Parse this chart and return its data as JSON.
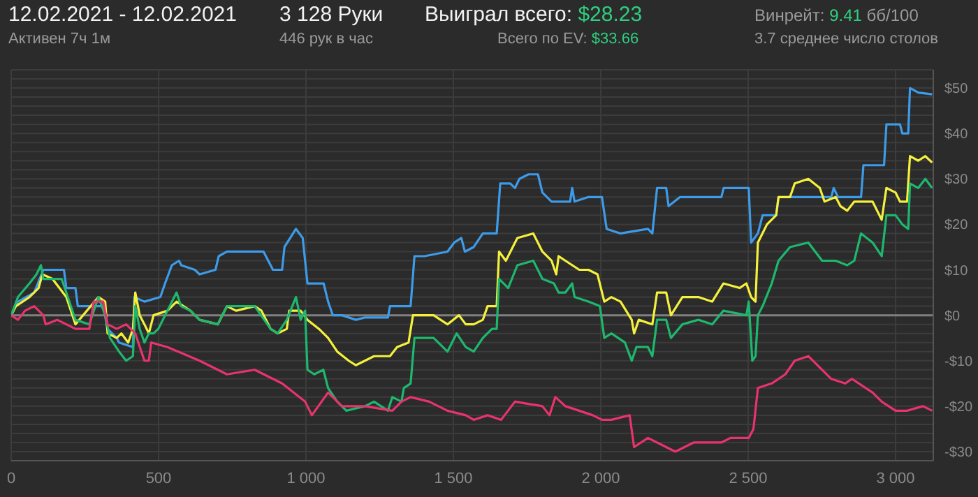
{
  "chart_data": {
    "type": "line",
    "title": "12.02.2021 - 12.02.2021",
    "annotations": [
      "Активен 7ч 1м",
      "3 128 Руки",
      "446 рук в час",
      "Выиграл всего:",
      "$28.23",
      "Всего по EV:",
      "$33.66",
      "Винрейт:",
      "9.41",
      "бб/100",
      "3.7 среднее число столов"
    ],
    "xlim": [
      0,
      3128
    ],
    "xticks": [
      0,
      500,
      {
        "value": 1000,
        "label": "1 000"
      },
      {
        "value": 1500,
        "label": "1 500"
      },
      {
        "value": 2000,
        "label": "2 000"
      },
      {
        "value": 2500,
        "label": "2 500"
      },
      {
        "value": 3000,
        "label": "3 000"
      }
    ],
    "ylim": [
      -32,
      54
    ],
    "yticks": [
      {
        "value": -30,
        "label": "-$30"
      },
      {
        "value": -28,
        "label": null
      },
      {
        "value": -26,
        "label": null
      },
      {
        "value": -24,
        "label": null
      },
      {
        "value": -22,
        "label": null
      },
      {
        "value": -20,
        "label": "-$20"
      },
      {
        "value": -18,
        "label": null
      },
      {
        "value": -16,
        "label": null
      },
      {
        "value": -14,
        "label": null
      },
      {
        "value": -12,
        "label": null
      },
      {
        "value": -10,
        "label": "-$10"
      },
      {
        "value": -8,
        "label": null
      },
      {
        "value": -6,
        "label": null
      },
      {
        "value": -4,
        "label": null
      },
      {
        "value": -2,
        "label": null
      },
      {
        "value": 0,
        "label": "$0"
      },
      {
        "value": 2,
        "label": null
      },
      {
        "value": 4,
        "label": null
      },
      {
        "value": 6,
        "label": null
      },
      {
        "value": 8,
        "label": null
      },
      {
        "value": 10,
        "label": "$10"
      },
      {
        "value": 12,
        "label": null
      },
      {
        "value": 14,
        "label": null
      },
      {
        "value": 16,
        "label": null
      },
      {
        "value": 18,
        "label": null
      },
      {
        "value": 20,
        "label": "$20"
      },
      {
        "value": 22,
        "label": null
      },
      {
        "value": 24,
        "label": null
      },
      {
        "value": 26,
        "label": null
      },
      {
        "value": 28,
        "label": null
      },
      {
        "value": 30,
        "label": "$30"
      },
      {
        "value": 32,
        "label": null
      },
      {
        "value": 34,
        "label": null
      },
      {
        "value": 36,
        "label": null
      },
      {
        "value": 38,
        "label": null
      },
      {
        "value": 40,
        "label": "$40"
      },
      {
        "value": 42,
        "label": null
      },
      {
        "value": 44,
        "label": null
      },
      {
        "value": 46,
        "label": null
      },
      {
        "value": 48,
        "label": null
      },
      {
        "value": 50,
        "label": "$50"
      },
      {
        "value": 52,
        "label": null
      }
    ],
    "grid": true,
    "marker": "none",
    "line_style": "solid",
    "ref_lines": [
      {
        "axis": "y",
        "value": 0,
        "color": "#808080"
      }
    ],
    "series": [
      {
        "color": "#3d9be9",
        "x": [
          0,
          23,
          78,
          109,
          179,
          187,
          218,
          226,
          312,
          327,
          358,
          366,
          413,
          418,
          452,
          506,
          522,
          545,
          569,
          577,
          623,
          639,
          693,
          704,
          732,
          856,
          872,
          888,
          919,
          927,
          966,
          989,
          1005,
          1060,
          1075,
          1091,
          1122,
          1169,
          1200,
          1278,
          1285,
          1355,
          1368,
          1402,
          1480,
          1503,
          1527,
          1539,
          1569,
          1600,
          1647,
          1659,
          1693,
          1709,
          1724,
          1755,
          1787,
          1802,
          1833,
          1896,
          1903,
          1911,
          1958,
          1973,
          2004,
          2020,
          2067,
          2160,
          2175,
          2191,
          2222,
          2230,
          2269,
          2409,
          2417,
          2502,
          2510,
          2533,
          2549,
          2595,
          2603,
          2751,
          2782,
          2790,
          2805,
          2883,
          2891,
          2961,
          2969,
          3015,
          3023,
          3043,
          3049,
          3077,
          3124
        ],
        "values": [
          0,
          3,
          5,
          10,
          10,
          6,
          6,
          2,
          2,
          -3,
          -5,
          -6,
          -7,
          4,
          3,
          4,
          7,
          11,
          12,
          11,
          10,
          9,
          10,
          13,
          14,
          14,
          12,
          10,
          10,
          15,
          19,
          17,
          7,
          7,
          3,
          0,
          0,
          -1,
          -0.5,
          -0.5,
          2,
          2,
          13,
          13,
          14,
          16,
          17,
          14,
          15,
          18,
          18,
          29,
          29,
          28,
          30,
          31,
          31,
          27,
          25,
          25,
          28,
          25,
          26,
          26,
          26,
          19,
          18,
          19,
          18,
          28,
          28,
          24,
          26,
          26,
          28,
          28,
          16,
          18,
          22,
          22,
          26,
          26,
          26,
          28,
          26,
          26,
          33,
          33,
          42,
          42,
          40,
          40,
          50,
          49,
          48.6
        ]
      },
      {
        "color": "#f5f03c",
        "x": [
          0,
          16,
          62,
          93,
          106,
          140,
          187,
          218,
          296,
          319,
          327,
          358,
          374,
          397,
          413,
          421,
          436,
          452,
          467,
          483,
          530,
          561,
          608,
          639,
          701,
          732,
          763,
          826,
          849,
          880,
          904,
          935,
          943,
          982,
          1005,
          1044,
          1075,
          1106,
          1145,
          1169,
          1231,
          1285,
          1309,
          1348,
          1363,
          1433,
          1480,
          1519,
          1542,
          1569,
          1600,
          1616,
          1647,
          1655,
          1678,
          1717,
          1771,
          1802,
          1833,
          1849,
          1857,
          1880,
          1927,
          1958,
          1989,
          2012,
          2036,
          2067,
          2105,
          2113,
          2129,
          2175,
          2191,
          2222,
          2238,
          2277,
          2331,
          2378,
          2416,
          2471,
          2494,
          2510,
          2525,
          2533,
          2564,
          2595,
          2603,
          2642,
          2658,
          2704,
          2743,
          2759,
          2797,
          2813,
          2836,
          2860,
          2922,
          2953,
          2969,
          3000,
          3015,
          3039,
          3049,
          3077,
          3101,
          3124
        ],
        "values": [
          0,
          2,
          4,
          6,
          9,
          8,
          4,
          -2,
          4,
          3,
          -4,
          -5,
          -4,
          -6,
          -3,
          5,
          0,
          -2,
          -4,
          0,
          1,
          3,
          1,
          -1,
          -2,
          2,
          1,
          2,
          1,
          -3,
          -4,
          -3,
          1,
          1,
          -1,
          -3,
          -5,
          -8,
          -10,
          -11,
          -9,
          -9,
          -7,
          -6,
          0,
          0,
          -2,
          0,
          -2,
          -2,
          -1,
          2,
          2,
          14,
          12,
          17,
          18,
          14,
          12,
          9,
          13,
          12,
          10,
          10,
          9,
          3,
          4,
          3,
          -1,
          -4,
          -1,
          -2,
          5,
          5,
          0,
          4,
          4,
          3,
          7,
          6,
          7,
          4,
          3,
          16,
          20,
          22,
          26,
          26,
          29,
          30,
          28,
          25,
          26,
          24,
          23,
          25,
          25,
          21,
          28,
          27,
          25,
          25,
          35,
          34,
          35,
          33.6
        ]
      },
      {
        "color": "#1db86e",
        "x": [
          0,
          23,
          62,
          86,
          101,
          109,
          140,
          171,
          187,
          218,
          265,
          296,
          319,
          335,
          366,
          390,
          413,
          421,
          436,
          452,
          467,
          483,
          499,
          530,
          561,
          576,
          608,
          639,
          701,
          732,
          826,
          880,
          904,
          935,
          966,
          982,
          997,
          1005,
          1028,
          1059,
          1075,
          1106,
          1137,
          1200,
          1231,
          1278,
          1293,
          1324,
          1332,
          1355,
          1368,
          1433,
          1480,
          1511,
          1542,
          1569,
          1600,
          1631,
          1647,
          1655,
          1686,
          1717,
          1771,
          1802,
          1841,
          1857,
          1880,
          1903,
          1911,
          1958,
          1997,
          2012,
          2036,
          2082,
          2105,
          2121,
          2160,
          2175,
          2191,
          2222,
          2238,
          2277,
          2331,
          2378,
          2416,
          2494,
          2502,
          2514,
          2525,
          2533,
          2549,
          2580,
          2603,
          2642,
          2704,
          2751,
          2797,
          2836,
          2860,
          2883,
          2922,
          2953,
          2969,
          3000,
          3023,
          3043,
          3049,
          3077,
          3101,
          3124
        ],
        "values": [
          0,
          4,
          7,
          9,
          11,
          8,
          8,
          8,
          5,
          -1,
          -2,
          4,
          0,
          -5,
          -8,
          -10,
          -9,
          2,
          -3,
          -6,
          -4,
          -4,
          -3,
          1,
          5,
          2,
          1,
          -1,
          -2,
          2,
          2,
          -3,
          -4,
          -1,
          4,
          -1,
          1,
          -12,
          -13,
          -12,
          -16,
          -19,
          -21,
          -20,
          -19,
          -21,
          -18,
          -19,
          -16,
          -15,
          -5,
          -5,
          -8,
          -4,
          -7,
          -8,
          -5,
          -3,
          -3,
          8,
          6,
          11,
          12,
          8,
          7,
          5,
          5,
          7,
          4,
          3,
          2,
          -5,
          -4,
          -6,
          -10,
          -7,
          -7,
          -9,
          -1,
          -1,
          -5,
          -2,
          -1,
          -2,
          1,
          0,
          3,
          -10,
          -9,
          0,
          2,
          7,
          12,
          15,
          16,
          12,
          12,
          11,
          12,
          18,
          16,
          13,
          22,
          22,
          20,
          19,
          29,
          28,
          30,
          28
        ]
      },
      {
        "color": "#e8336d",
        "x": [
          0,
          23,
          47,
          78,
          109,
          117,
          156,
          187,
          218,
          265,
          280,
          312,
          327,
          358,
          390,
          421,
          452,
          467,
          475,
          530,
          639,
          701,
          732,
          826,
          919,
          997,
          1020,
          1075,
          1122,
          1200,
          1293,
          1324,
          1355,
          1418,
          1480,
          1542,
          1569,
          1616,
          1662,
          1709,
          1802,
          1826,
          1846,
          1880,
          1973,
          2004,
          2036,
          2098,
          2113,
          2160,
          2222,
          2253,
          2315,
          2409,
          2440,
          2502,
          2518,
          2533,
          2580,
          2626,
          2658,
          2704,
          2751,
          2782,
          2829,
          2852,
          2922,
          2953,
          3000,
          3039,
          3093,
          3124
        ],
        "values": [
          0,
          -1,
          1,
          2,
          0,
          -2,
          -1,
          -2,
          -3,
          -3,
          3,
          3,
          -2,
          -3,
          -2,
          -4,
          -10,
          -10,
          -6,
          -7,
          -10,
          -12,
          -13,
          -12,
          -15,
          -19,
          -22,
          -17,
          -20,
          -20,
          -21,
          -19,
          -18,
          -19,
          -21,
          -22,
          -23,
          -22,
          -23,
          -19,
          -20,
          -22,
          -18,
          -20,
          -22,
          -23,
          -23,
          -22,
          -29,
          -27,
          -29,
          -30,
          -28,
          -28,
          -27,
          -27,
          -25,
          -16,
          -15,
          -13,
          -10,
          -9,
          -12,
          -14,
          -15,
          -14,
          -17,
          -19,
          -21,
          -21,
          -20,
          -21
        ]
      }
    ]
  }
}
